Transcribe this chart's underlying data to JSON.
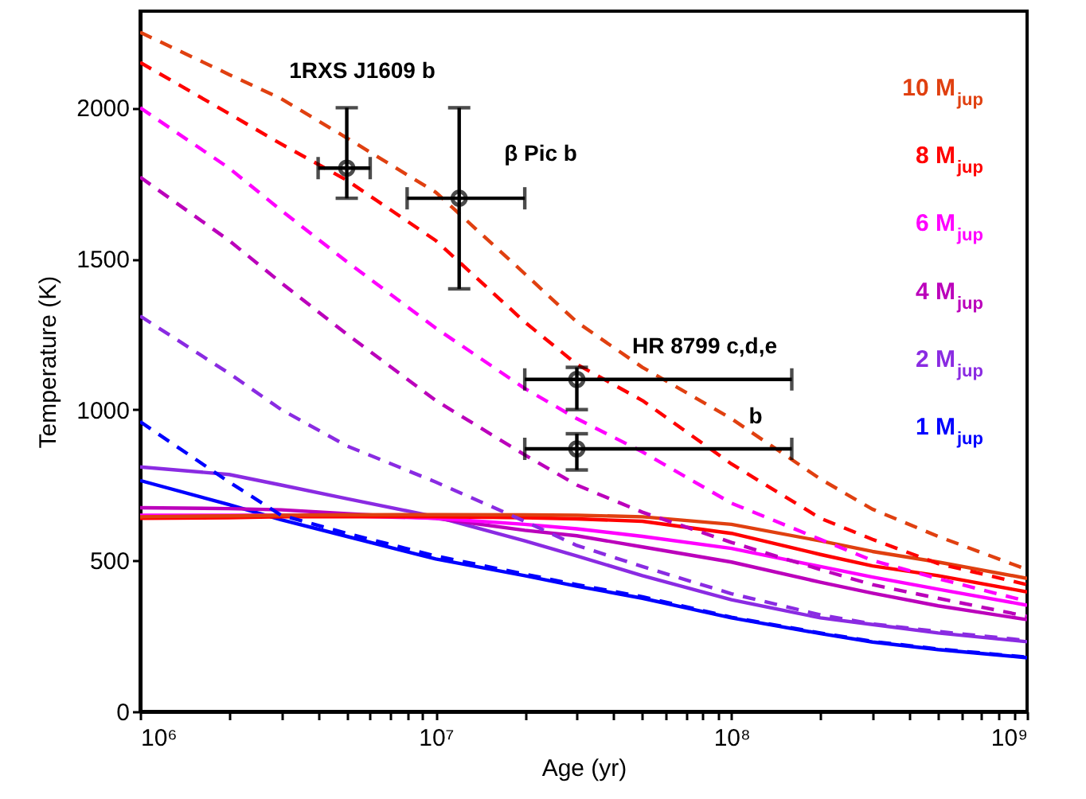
{
  "chart_data": {
    "type": "line",
    "xlabel": "Age (yr)",
    "ylabel": "Temperature (K)",
    "log": "x",
    "grid": false,
    "legend": "top right",
    "marker": "none",
    "xlim": [
      1000000,
      1000000000
    ],
    "ylim": [
      0,
      2320
    ],
    "xticks": [
      {
        "value": 1000000,
        "label": "10⁶"
      },
      {
        "value": 2000000,
        "label": null
      },
      {
        "value": 3000000,
        "label": null
      },
      {
        "value": 4000000,
        "label": null
      },
      {
        "value": 5000000,
        "label": null
      },
      {
        "value": 6000000,
        "label": null
      },
      {
        "value": 7000000,
        "label": null
      },
      {
        "value": 8000000,
        "label": null
      },
      {
        "value": 9000000,
        "label": null
      },
      {
        "value": 10000000,
        "label": "10⁷"
      },
      {
        "value": 20000000,
        "label": null
      },
      {
        "value": 30000000,
        "label": null
      },
      {
        "value": 40000000,
        "label": null
      },
      {
        "value": 50000000,
        "label": null
      },
      {
        "value": 60000000,
        "label": null
      },
      {
        "value": 70000000,
        "label": null
      },
      {
        "value": 80000000,
        "label": null
      },
      {
        "value": 90000000,
        "label": null
      },
      {
        "value": 100000000,
        "label": "10⁸"
      },
      {
        "value": 200000000,
        "label": null
      },
      {
        "value": 300000000,
        "label": null
      },
      {
        "value": 400000000,
        "label": null
      },
      {
        "value": 500000000,
        "label": null
      },
      {
        "value": 600000000,
        "label": null
      },
      {
        "value": 700000000,
        "label": null
      },
      {
        "value": 800000000,
        "label": null
      },
      {
        "value": 900000000,
        "label": null
      },
      {
        "value": 1000000000,
        "label": "10⁹"
      }
    ],
    "yticks": [
      0,
      500,
      1000,
      1500,
      2000
    ],
    "x": [
      1000000,
      2000000,
      3000000,
      5000000,
      10000000,
      20000000,
      30000000,
      50000000,
      100000000,
      200000000,
      300000000,
      500000000,
      1000000000
    ],
    "series": [
      {
        "color": "#0000ff",
        "line_style": "solid",
        "values": [
          765,
          685,
          635,
          580,
          505,
          450,
          415,
          375,
          310,
          258,
          230,
          205,
          178
        ]
      },
      {
        "color": "#8a2be2",
        "line_style": "solid",
        "values": [
          810,
          785,
          750,
          705,
          645,
          565,
          515,
          450,
          370,
          310,
          288,
          260,
          231
        ]
      },
      {
        "color": "#bb00bb",
        "line_style": "solid",
        "values": [
          675,
          672,
          668,
          655,
          640,
          600,
          582,
          545,
          495,
          428,
          392,
          350,
          304
        ]
      },
      {
        "color": "#ff00ff",
        "line_style": "solid",
        "values": [
          650,
          650,
          650,
          648,
          640,
          620,
          605,
          580,
          540,
          480,
          445,
          405,
          352
        ]
      },
      {
        "color": "#ff0000",
        "line_style": "solid",
        "values": [
          640,
          642,
          645,
          645,
          645,
          642,
          638,
          630,
          590,
          520,
          482,
          450,
          396
        ]
      },
      {
        "color": "#e04010",
        "line_style": "solid",
        "values": [
          645,
          648,
          650,
          651,
          652,
          651,
          650,
          645,
          620,
          565,
          530,
          495,
          441
        ]
      },
      {
        "name": "1 M$_{jup}$",
        "color": "#0000ff",
        "line_style": "dashed",
        "values": [
          960,
          760,
          650,
          590,
          515,
          455,
          420,
          380,
          312,
          260,
          232,
          207,
          180
        ]
      },
      {
        "name": "2 M$_{jup}$",
        "color": "#8a2be2",
        "line_style": "dashed",
        "values": [
          1310,
          1120,
          1000,
          880,
          760,
          630,
          550,
          480,
          390,
          320,
          290,
          265,
          235
        ]
      },
      {
        "name": "4 M$_{jup}$",
        "color": "#bb00bb",
        "line_style": "dashed",
        "values": [
          1770,
          1560,
          1420,
          1250,
          1030,
          850,
          750,
          660,
          560,
          470,
          420,
          375,
          315
        ]
      },
      {
        "name": "6 M$_{jup}$",
        "color": "#ff00ff",
        "line_style": "dashed",
        "values": [
          2000,
          1800,
          1660,
          1490,
          1270,
          1070,
          970,
          860,
          690,
          570,
          500,
          440,
          365
        ]
      },
      {
        "name": "8 M$_{jup}$",
        "color": "#ff0000",
        "line_style": "dashed",
        "values": [
          2150,
          1980,
          1880,
          1760,
          1560,
          1290,
          1150,
          1030,
          820,
          640,
          570,
          490,
          420
        ]
      },
      {
        "name": "10 M$_{jup}$",
        "color": "#e04010",
        "line_style": "dashed",
        "values": [
          2250,
          2110,
          2030,
          1900,
          1720,
          1450,
          1290,
          1140,
          970,
          770,
          670,
          580,
          470
        ]
      },
      {
        "type": "scatter",
        "marker": "circle",
        "color": "#000000",
        "x": [
          5000000,
          12000000,
          30000000,
          30000000
        ],
        "values": [
          1800,
          1700,
          1100,
          870
        ],
        "errors": [
          [
            1700,
            2000
          ],
          [
            1400,
            2000
          ],
          [
            1000,
            1140
          ],
          [
            800,
            920
          ]
        ],
        "xerrors": [
          [
            4000000,
            6000000
          ],
          [
            8000000,
            20000000
          ],
          [
            20000000,
            160000000
          ],
          [
            20000000,
            160000000
          ]
        ]
      }
    ],
    "annotations": [
      "1RXS J1609 b",
      "β Pic b",
      "HR 8799 c,d,e",
      "b"
    ]
  }
}
